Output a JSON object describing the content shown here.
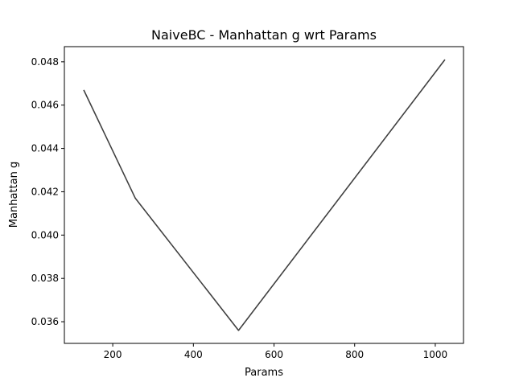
{
  "chart_data": {
    "type": "line",
    "title": "NaiveBC - Manhattan g wrt Params",
    "xlabel": "Params",
    "ylabel": "Manhattan g",
    "xlim": [
      80,
      1070
    ],
    "ylim": [
      0.035,
      0.0487
    ],
    "grid": false,
    "xticks": [
      200,
      400,
      600,
      800,
      1000
    ],
    "xtick_labels": [
      "200",
      "400",
      "600",
      "800",
      "1000"
    ],
    "yticks": [
      0.036,
      0.038,
      0.04,
      0.042,
      0.044,
      0.046,
      0.048
    ],
    "ytick_labels": [
      "0.036",
      "0.038",
      "0.040",
      "0.042",
      "0.044",
      "0.046",
      "0.048"
    ],
    "series": [
      {
        "color": "#404040",
        "x": [
          128,
          256,
          512,
          1024
        ],
        "y": [
          0.0467,
          0.0417,
          0.0356,
          0.0481
        ]
      }
    ]
  }
}
